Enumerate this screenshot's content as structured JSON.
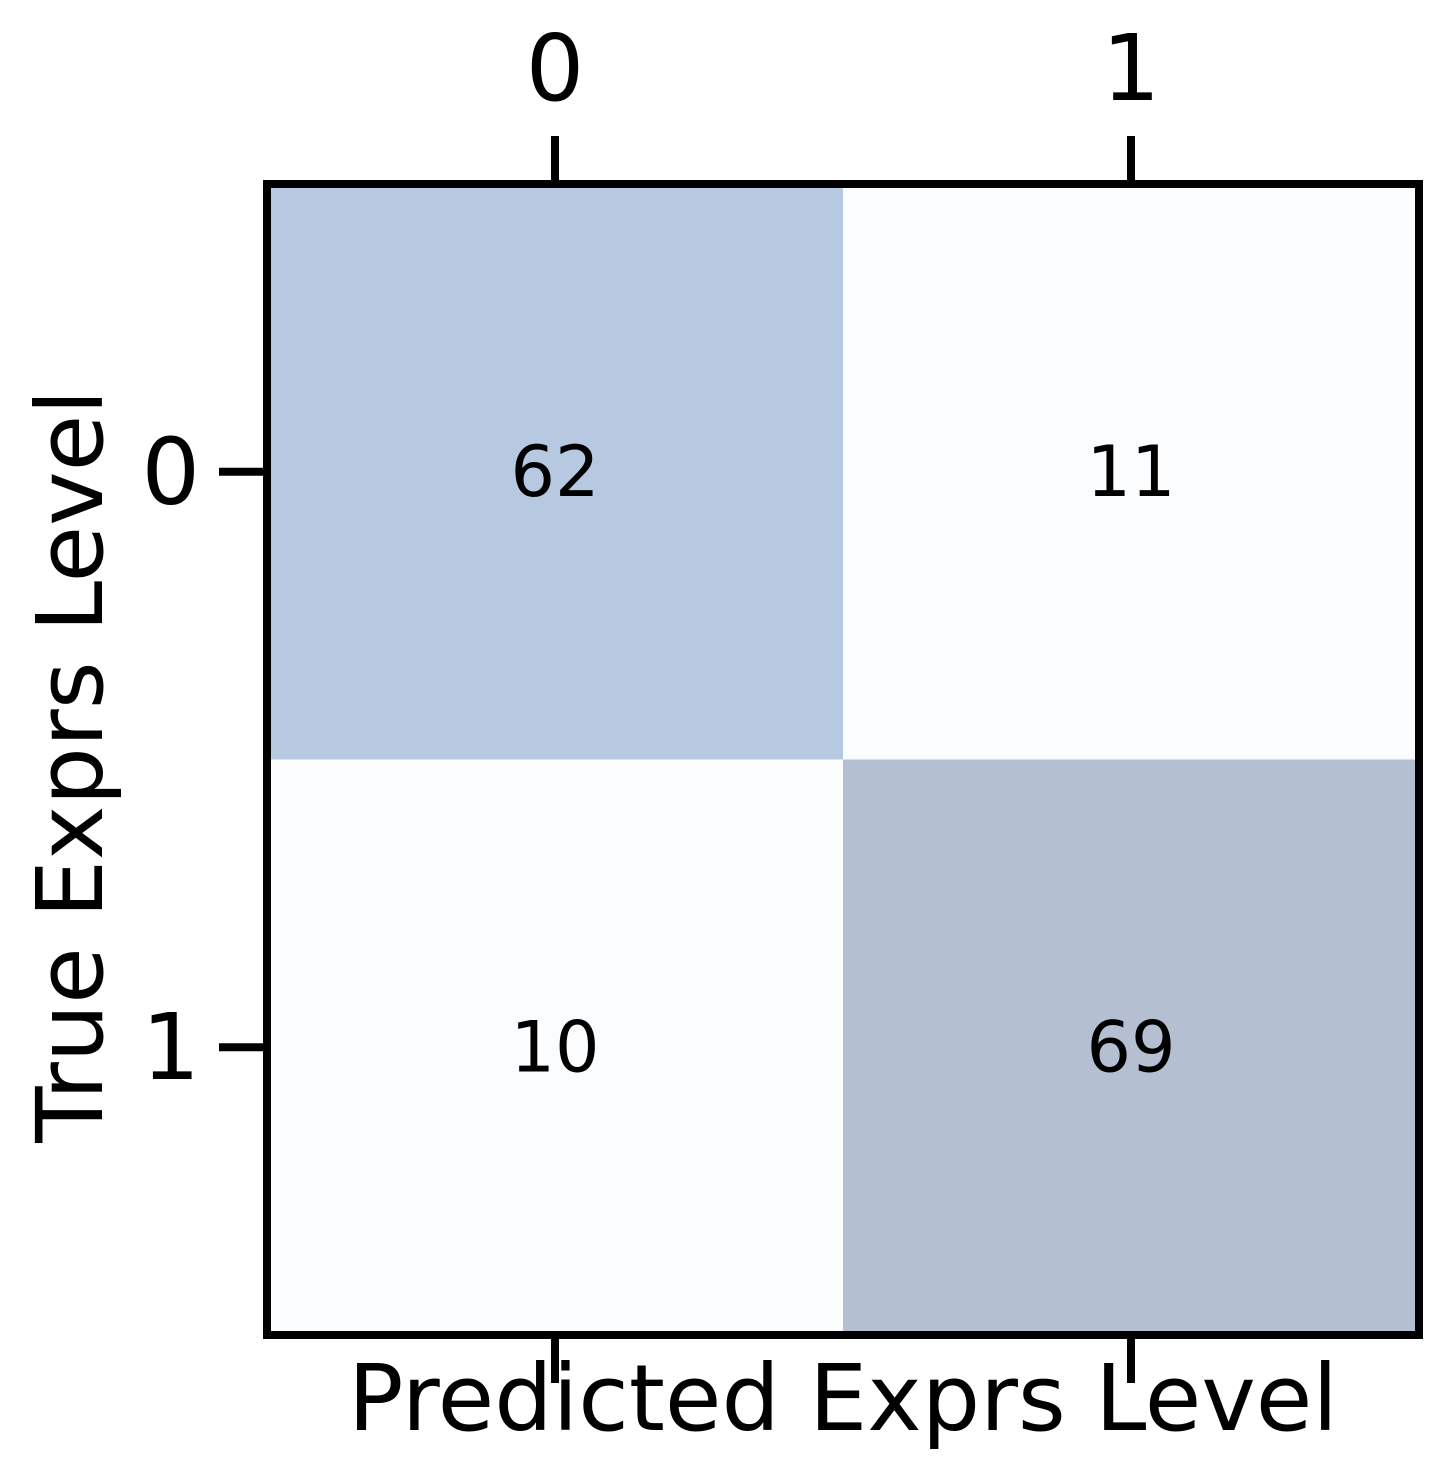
{
  "chart_data": {
    "type": "heatmap",
    "x_categories": [
      "0",
      "1"
    ],
    "y_categories": [
      "0",
      "1"
    ],
    "values": [
      [
        62,
        11
      ],
      [
        10,
        69
      ]
    ],
    "xlabel": "Predicted Exprs Level",
    "ylabel": "True Exprs Level",
    "cell_colors": [
      [
        "#b7c9e0",
        "#fbfcfe"
      ],
      [
        "#fbfcfe",
        "#b4c0d2"
      ]
    ],
    "x_tick_position": "top",
    "grid": false,
    "legend": "none"
  }
}
